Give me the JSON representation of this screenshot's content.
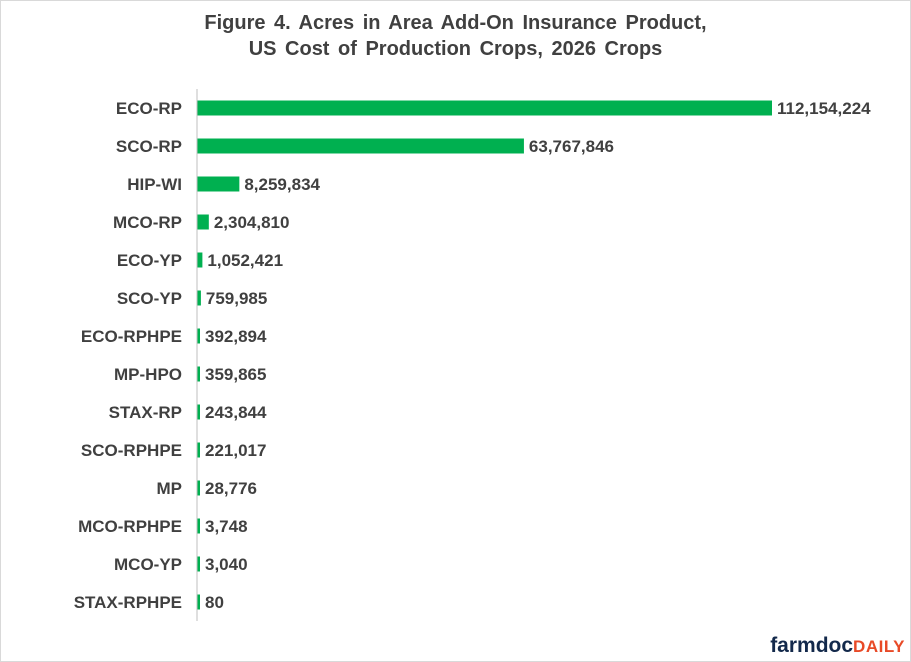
{
  "title_line1": "Figure 4.  Acres in Area Add-On Insurance Product,",
  "title_line2": "US Cost of Production  Crops, 2026 Crops",
  "colors": {
    "bar": "#00b050",
    "label": "#404040",
    "axis": "#bfbfbf",
    "logo_primary": "#13294b",
    "logo_accent": "#e84a27"
  },
  "logo": {
    "farmdoc": "farmdoc",
    "daily": "DAILY"
  },
  "chart_data": {
    "type": "bar",
    "orientation": "horizontal",
    "title": "Figure 4.  Acres in Area Add-On Insurance Product, US Cost of Production  Crops, 2026 Crops",
    "categories": [
      "ECO-RP",
      "SCO-RP",
      "HIP-WI",
      "MCO-RP",
      "ECO-YP",
      "SCO-YP",
      "ECO-RPHPE",
      "MP-HPO",
      "STAX-RP",
      "SCO-RPHPE",
      "MP",
      "MCO-RPHPE",
      "MCO-YP",
      "STAX-RPHPE"
    ],
    "values": [
      112154224,
      63767846,
      8259834,
      2304810,
      1052421,
      759985,
      392894,
      359865,
      243844,
      221017,
      28776,
      3748,
      3040,
      80
    ],
    "value_labels": [
      "112,154,224",
      "63,767,846",
      "8,259,834",
      "2,304,810",
      "1,052,421",
      "759,985",
      "392,894",
      "359,865",
      "243,844",
      "221,017",
      "28,776",
      "3,748",
      "3,040",
      "80"
    ],
    "xlim": [
      0,
      112154224
    ],
    "grid": false,
    "legend": "none"
  }
}
